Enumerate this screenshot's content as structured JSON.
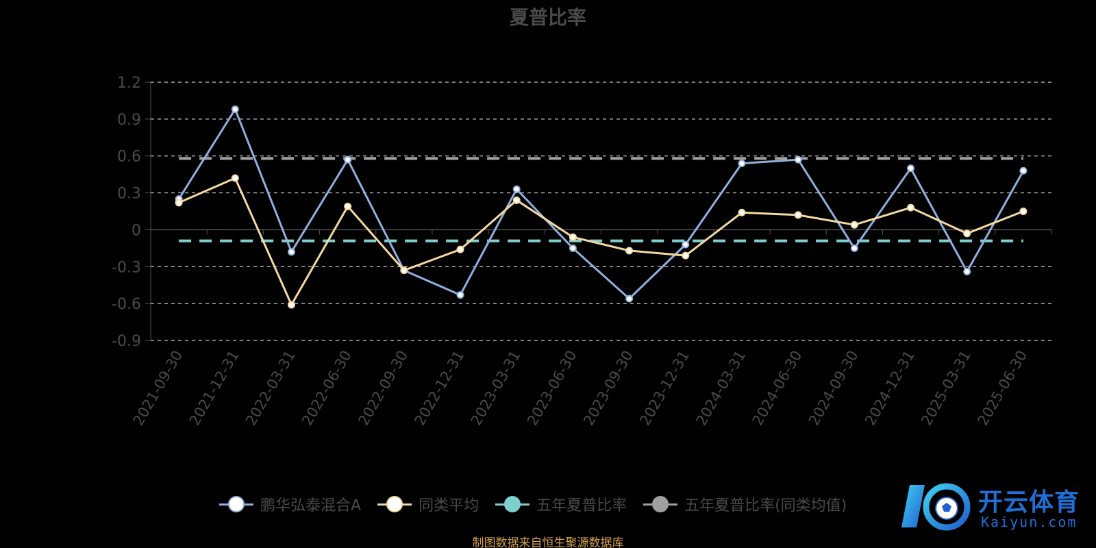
{
  "chart_data": {
    "type": "line",
    "title": "夏普比率",
    "categories": [
      "2021-09-30",
      "2021-12-31",
      "2022-03-31",
      "2022-06-30",
      "2022-09-30",
      "2022-12-31",
      "2023-03-31",
      "2023-06-30",
      "2023-09-30",
      "2023-12-31",
      "2024-03-31",
      "2024-06-30",
      "2024-09-30",
      "2024-12-31",
      "2025-03-31",
      "2025-06-30"
    ],
    "series": [
      {
        "name": "鹏华弘泰混合A",
        "color": "#8fb0e0",
        "dash": false,
        "marker": true,
        "values": [
          0.25,
          0.98,
          -0.18,
          0.57,
          -0.33,
          -0.53,
          0.33,
          -0.15,
          -0.56,
          -0.12,
          0.54,
          0.57,
          -0.15,
          0.5,
          -0.34,
          0.48
        ]
      },
      {
        "name": "同类平均",
        "color": "#f5d9a0",
        "dash": false,
        "marker": true,
        "values": [
          0.22,
          0.42,
          -0.61,
          0.19,
          -0.33,
          -0.16,
          0.24,
          -0.06,
          -0.17,
          -0.21,
          0.14,
          0.12,
          0.04,
          0.18,
          -0.03,
          0.15
        ]
      },
      {
        "name": "五年夏普比率",
        "color": "#7ecfcf",
        "dash": true,
        "marker": false,
        "values": [
          -0.09,
          -0.09,
          -0.09,
          -0.09,
          -0.09,
          -0.09,
          -0.09,
          -0.09,
          -0.09,
          -0.09,
          -0.09,
          -0.09,
          -0.09,
          -0.09,
          -0.09,
          -0.09
        ]
      },
      {
        "name": "五年夏普比率(同类均值)",
        "color": "#a0a0a0",
        "dash": true,
        "marker": false,
        "values": [
          0.58,
          0.58,
          0.58,
          0.58,
          0.58,
          0.58,
          0.58,
          0.58,
          0.58,
          0.58,
          0.58,
          0.58,
          0.58,
          0.58,
          0.58,
          0.58
        ]
      }
    ],
    "yticks": [
      "1.2",
      "0.9",
      "0.6",
      "0.3",
      "0",
      "-0.3",
      "-0.6",
      "-0.9"
    ],
    "ylim": [
      -0.9,
      1.2
    ],
    "grid": true,
    "legend_position": "bottom"
  },
  "legend_items": [
    "鹏华弘泰混合A",
    "同类平均",
    "五年夏普比率",
    "五年夏普比率(同类均值)"
  ],
  "source_text": "制图数据来自恒生聚源数据库",
  "logo": {
    "main": "开云体育",
    "sub": "Kaiyun.com"
  },
  "colors": {
    "background": "#000000",
    "axis": "#555555",
    "grid": "#ffffff",
    "text": "#4a4a4a",
    "source": "#d4a24a",
    "logo": "#1f6fd6"
  }
}
